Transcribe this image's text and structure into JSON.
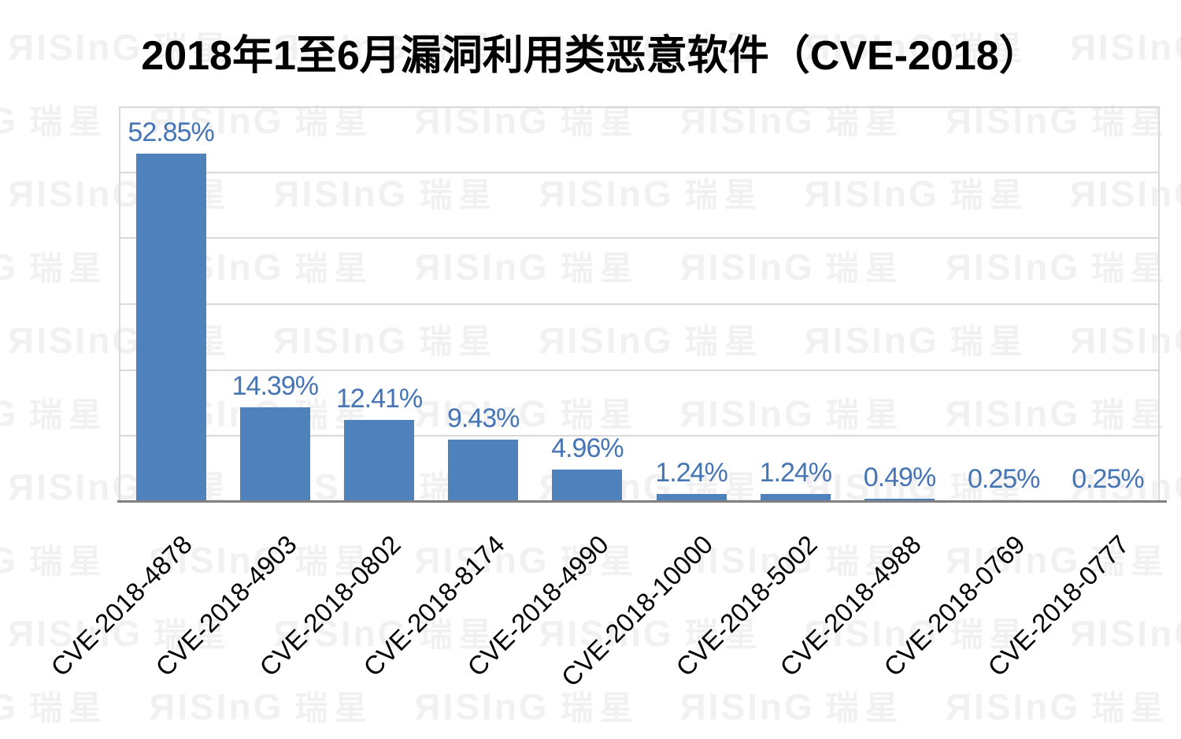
{
  "title": "2018年1至6月漏洞利用类恶意软件（CVE-2018）",
  "watermark": {
    "latin": "ЯISInG",
    "cjk": "瑞星"
  },
  "chart_data": {
    "type": "bar",
    "title": "2018年1至6月漏洞利用类恶意软件（CVE-2018）",
    "categories": [
      "CVE-2018-4878",
      "CVE-2018-4903",
      "CVE-2018-0802",
      "CVE-2018-8174",
      "CVE-2018-4990",
      "CVE-2018-10000",
      "CVE-2018-5002",
      "CVE-2018-4988",
      "CVE-2018-0769",
      "CVE-2018-0777"
    ],
    "values": [
      52.85,
      14.39,
      12.41,
      9.43,
      4.96,
      1.24,
      1.24,
      0.49,
      0.25,
      0.25
    ],
    "value_labels": [
      "52.85%",
      "14.39%",
      "12.41%",
      "9.43%",
      "4.96%",
      "1.24%",
      "1.24%",
      "0.49%",
      "0.25%",
      "0.25%"
    ],
    "xlabel": "",
    "ylabel": "",
    "ylim": [
      0,
      60
    ],
    "gridline_step_pct": 10,
    "grid": true,
    "legend": "none",
    "data_labels_position": "above bars",
    "category_label_rotation_deg": 45,
    "colors": {
      "bar": "#4f81bd",
      "data_label": "#4575b5",
      "gridline": "#d9d9d9",
      "axis_line": "#808080",
      "title_text": "#000000",
      "category_label": "#000000",
      "watermark": "#f1f1f1",
      "background": "#ffffff"
    }
  }
}
